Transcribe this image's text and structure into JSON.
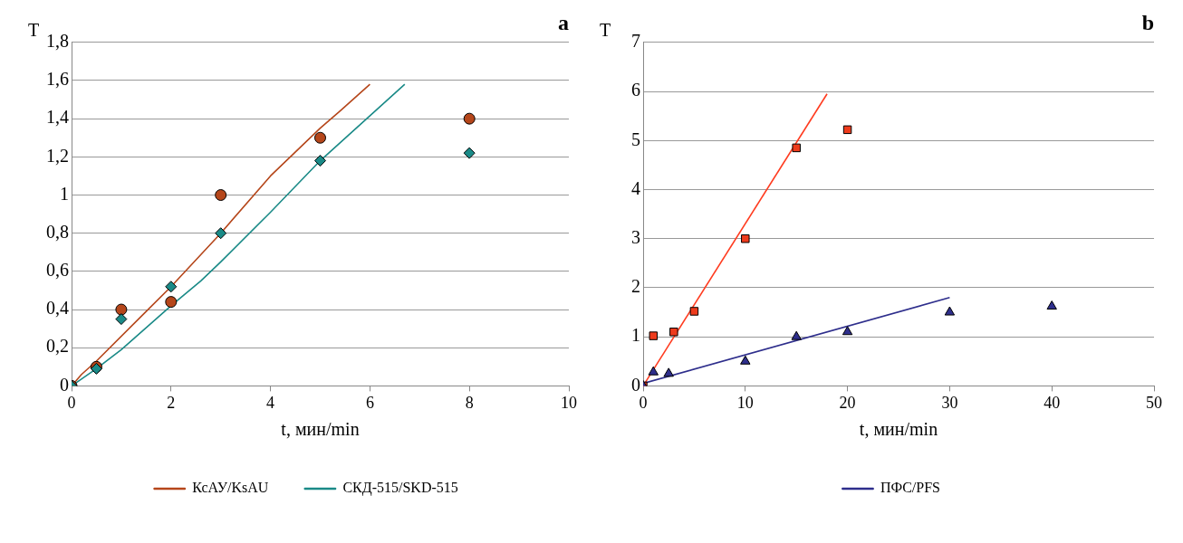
{
  "chart_data": [
    {
      "type": "scatter",
      "title": "a",
      "xlabel": "t, мин/min",
      "ylabel": "T",
      "xlim": [
        0,
        10
      ],
      "xticks": [
        0,
        2,
        4,
        6,
        8,
        10
      ],
      "ylim": [
        0,
        1.8
      ],
      "yticks": [
        0,
        {
          "value": 0.2,
          "label": "0,2"
        },
        {
          "value": 0.4,
          "label": "0,4"
        },
        {
          "value": 0.6,
          "label": "0,6"
        },
        {
          "value": 0.8,
          "label": "0,8"
        },
        1,
        {
          "value": 1.2,
          "label": "1,2"
        },
        {
          "value": 1.4,
          "label": "1,4"
        },
        {
          "value": 1.6,
          "label": "1,6"
        },
        {
          "value": 1.8,
          "label": "1,8"
        }
      ],
      "grid": "y",
      "legend": "bottom",
      "series": [
        {
          "type": "line",
          "name": "КсАУ/KsAU",
          "color": "#b5461a",
          "marker": "none",
          "x": [
            0,
            0.2,
            0.5,
            1.5,
            2,
            3,
            4,
            5,
            5.4,
            6
          ],
          "values": [
            0,
            0.06,
            0.13,
            0.39,
            0.52,
            0.8,
            1.1,
            1.35,
            1.44,
            1.58
          ]
        },
        {
          "type": "line",
          "name": "СКД-515/SKD-515",
          "color": "#1a8a87",
          "marker": "none",
          "x": [
            0,
            0.5,
            1,
            2,
            2.6,
            3,
            4,
            5,
            6.7
          ],
          "values": [
            0,
            0.09,
            0.19,
            0.42,
            0.55,
            0.65,
            0.91,
            1.18,
            1.58
          ]
        },
        {
          "type": "scatter",
          "color": "#b5461a",
          "marker": "circle",
          "x": [
            0,
            0.5,
            1,
            2,
            3,
            5,
            8
          ],
          "values": [
            0,
            0.1,
            0.4,
            0.44,
            1.0,
            1.3,
            1.4
          ]
        },
        {
          "type": "scatter",
          "color": "#1a8a87",
          "marker": "diamond",
          "x": [
            0,
            0.5,
            1,
            2,
            3,
            5,
            8
          ],
          "values": [
            0,
            0.09,
            0.35,
            0.52,
            0.8,
            1.18,
            1.22
          ]
        }
      ]
    },
    {
      "type": "scatter",
      "title": "b",
      "xlabel": "t, мин/min",
      "ylabel": "T",
      "xlim": [
        0,
        50
      ],
      "xticks": [
        0,
        10,
        20,
        30,
        40,
        50
      ],
      "ylim": [
        0,
        7
      ],
      "yticks": [
        0,
        1,
        2,
        3,
        4,
        5,
        6,
        7
      ],
      "grid": "y",
      "legend": "bottom",
      "series": [
        {
          "type": "line",
          "color": "#ff3b1f",
          "marker": "none",
          "x": [
            0,
            18
          ],
          "values": [
            0,
            5.95
          ]
        },
        {
          "type": "line",
          "name": "ПФС/PFS",
          "color": "#2e2e8c",
          "marker": "none",
          "x": [
            0,
            30
          ],
          "values": [
            0.05,
            1.8
          ]
        },
        {
          "type": "scatter",
          "color": "#ee3b1c",
          "marker": "square",
          "x": [
            0,
            1,
            3,
            5,
            10,
            15,
            20
          ],
          "values": [
            0,
            1.02,
            1.1,
            1.52,
            3.0,
            4.85,
            5.22
          ]
        },
        {
          "type": "scatter",
          "color": "#2e2e8c",
          "marker": "triangle",
          "x": [
            0,
            1,
            2.5,
            10,
            15,
            20,
            30,
            40
          ],
          "values": [
            0,
            0.28,
            0.25,
            0.5,
            1.0,
            1.1,
            1.5,
            1.62
          ]
        }
      ]
    }
  ]
}
